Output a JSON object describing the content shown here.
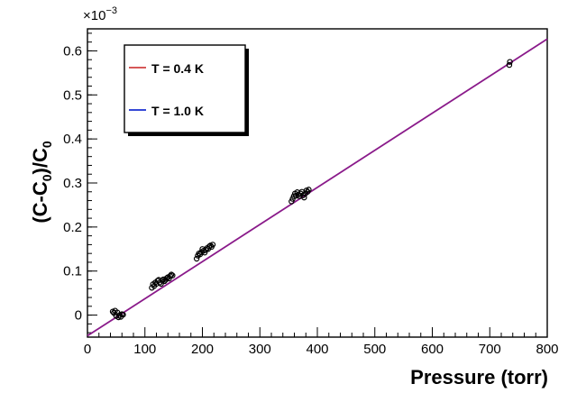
{
  "chart_data": {
    "type": "scatter",
    "title": "",
    "xlabel": "Pressure (torr)",
    "ylabel": "(C-C0)/C0",
    "ylabel_parts": {
      "a": "(C-C",
      "sub1": "0",
      "b": ")/C",
      "sub2": "0"
    },
    "y_exponent": {
      "base": "×10",
      "exp": "−3"
    },
    "xlim": [
      0,
      800
    ],
    "ylim": [
      -0.05,
      0.65
    ],
    "x_ticks": [
      0,
      100,
      200,
      300,
      400,
      500,
      600,
      700,
      800
    ],
    "x_tick_labels": [
      "0",
      "100",
      "200",
      "300",
      "400",
      "500",
      "600",
      "700",
      "800"
    ],
    "y_ticks": [
      0,
      0.1,
      0.2,
      0.3,
      0.4,
      0.5,
      0.6
    ],
    "y_tick_labels": [
      "0",
      "0.1",
      "0.2",
      "0.3",
      "0.4",
      "0.5",
      "0.6"
    ],
    "grid": false,
    "legend": {
      "placement": "top-left",
      "entries": [
        {
          "label": "T = 0.4 K",
          "color": "#d04040"
        },
        {
          "label": "T = 1.0 K",
          "color": "#1a2fd0"
        }
      ]
    },
    "fit_line": {
      "color": "#8a1a8a",
      "x": [
        0,
        800
      ],
      "y": [
        -0.047,
        0.627
      ]
    },
    "series": [
      {
        "marker": "open-circle",
        "x": [
          44,
          46,
          48,
          50,
          52,
          54,
          56,
          58,
          60,
          62,
          112,
          114,
          116,
          118,
          120,
          122,
          124,
          126,
          128,
          130,
          132,
          134,
          136,
          138,
          140,
          142,
          144,
          146,
          148,
          190,
          192,
          194,
          196,
          198,
          200,
          202,
          204,
          206,
          208,
          210,
          212,
          214,
          216,
          218,
          355,
          357,
          359,
          361,
          363,
          365,
          367,
          369,
          371,
          373,
          375,
          377,
          379,
          381,
          383,
          385,
          734,
          735
        ],
        "y": [
          0.008,
          0.005,
          0.01,
          -0.002,
          0.006,
          -0.005,
          0.0,
          -0.004,
          0.002,
          0.001,
          0.062,
          0.07,
          0.066,
          0.074,
          0.071,
          0.078,
          0.08,
          0.074,
          0.071,
          0.078,
          0.081,
          0.077,
          0.08,
          0.084,
          0.086,
          0.083,
          0.089,
          0.092,
          0.09,
          0.128,
          0.135,
          0.14,
          0.138,
          0.143,
          0.15,
          0.146,
          0.142,
          0.148,
          0.152,
          0.15,
          0.156,
          0.158,
          0.155,
          0.16,
          0.258,
          0.264,
          0.27,
          0.276,
          0.271,
          0.279,
          0.274,
          0.27,
          0.276,
          0.28,
          0.272,
          0.267,
          0.276,
          0.283,
          0.28,
          0.285,
          0.568,
          0.575
        ]
      }
    ]
  }
}
